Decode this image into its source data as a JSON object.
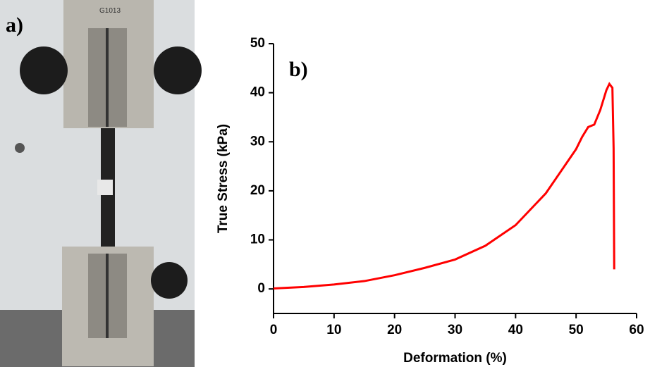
{
  "photo": {
    "label": "a)",
    "machine_text": "G1013"
  },
  "chart_data": {
    "type": "line",
    "panel_label": "b)",
    "x_label": "Deformation (%)",
    "y_label": "True Stress (kPa)",
    "x": [
      0,
      5,
      10,
      15,
      20,
      25,
      30,
      35,
      40,
      45,
      50,
      51,
      52,
      53,
      54,
      55,
      55.5,
      56,
      56.2,
      56.3
    ],
    "series": [
      {
        "name": "True Stress",
        "color": "#ff0000",
        "values": [
          0.1,
          0.4,
          0.9,
          1.6,
          2.8,
          4.3,
          6.0,
          8.8,
          13.0,
          19.5,
          28.5,
          31,
          33,
          33.5,
          36.5,
          40.5,
          41.8,
          41,
          28.7,
          4
        ]
      }
    ],
    "xlim": [
      0,
      60
    ],
    "ylim": [
      -5,
      50
    ],
    "xticks": [
      0,
      10,
      20,
      30,
      40,
      50,
      60
    ],
    "yticks": [
      0,
      10,
      20,
      30,
      40,
      50
    ]
  }
}
